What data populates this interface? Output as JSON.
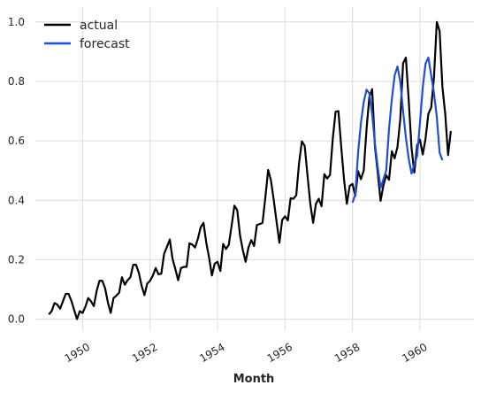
{
  "chart_data": {
    "type": "line",
    "title": "",
    "xlabel": "Month",
    "ylabel": "",
    "xlim": [
      1948.6,
      1961.6
    ],
    "ylim": [
      -0.04,
      1.05
    ],
    "grid": true,
    "legend_position": "top-left",
    "x_ticks": [
      {
        "value": 1950,
        "label": "1950"
      },
      {
        "value": 1952,
        "label": "1952"
      },
      {
        "value": 1954,
        "label": "1954"
      },
      {
        "value": 1956,
        "label": "1956"
      },
      {
        "value": 1958,
        "label": "1958"
      },
      {
        "value": 1960,
        "label": "1960"
      }
    ],
    "y_ticks": [
      {
        "value": 0.0,
        "label": "0.0"
      },
      {
        "value": 0.2,
        "label": "0.2"
      },
      {
        "value": 0.4,
        "label": "0.4"
      },
      {
        "value": 0.6,
        "label": "0.6"
      },
      {
        "value": 0.8,
        "label": "0.8"
      },
      {
        "value": 1.0,
        "label": "1.0"
      }
    ],
    "series": [
      {
        "name": "actual",
        "color": "#000000",
        "x_start": 1949.0,
        "x_step": 0.083333,
        "values": [
          0.016,
          0.027,
          0.054,
          0.049,
          0.035,
          0.06,
          0.085,
          0.085,
          0.062,
          0.031,
          0.0,
          0.027,
          0.021,
          0.042,
          0.071,
          0.06,
          0.044,
          0.095,
          0.129,
          0.129,
          0.104,
          0.056,
          0.021,
          0.071,
          0.079,
          0.089,
          0.141,
          0.116,
          0.131,
          0.141,
          0.183,
          0.183,
          0.156,
          0.112,
          0.081,
          0.12,
          0.129,
          0.147,
          0.172,
          0.151,
          0.153,
          0.22,
          0.243,
          0.268,
          0.203,
          0.168,
          0.131,
          0.172,
          0.176,
          0.176,
          0.255,
          0.251,
          0.241,
          0.27,
          0.309,
          0.324,
          0.257,
          0.207,
          0.147,
          0.187,
          0.193,
          0.162,
          0.253,
          0.236,
          0.25,
          0.314,
          0.382,
          0.367,
          0.282,
          0.232,
          0.193,
          0.241,
          0.266,
          0.246,
          0.317,
          0.32,
          0.324,
          0.409,
          0.502,
          0.467,
          0.4,
          0.328,
          0.257,
          0.334,
          0.346,
          0.332,
          0.407,
          0.405,
          0.417,
          0.525,
          0.598,
          0.583,
          0.484,
          0.388,
          0.324,
          0.388,
          0.405,
          0.38,
          0.488,
          0.473,
          0.485,
          0.608,
          0.698,
          0.7,
          0.579,
          0.469,
          0.388,
          0.448,
          0.455,
          0.415,
          0.498,
          0.471,
          0.5,
          0.639,
          0.747,
          0.774,
          0.579,
          0.492,
          0.398,
          0.45,
          0.484,
          0.469,
          0.565,
          0.541,
          0.579,
          0.672,
          0.861,
          0.88,
          0.737,
          0.577,
          0.493,
          0.585,
          0.604,
          0.554,
          0.608,
          0.691,
          0.712,
          0.815,
          1.0,
          0.969,
          0.78,
          0.69,
          0.552,
          0.633
        ]
      },
      {
        "name": "forecast",
        "color": "#1f4ed8",
        "x_start": 1958.0,
        "x_step": 0.083333,
        "values": [
          0.392,
          0.42,
          0.56,
          0.66,
          0.73,
          0.772,
          0.76,
          0.69,
          0.59,
          0.51,
          0.442,
          0.47,
          0.5,
          0.64,
          0.74,
          0.82,
          0.85,
          0.8,
          0.7,
          0.61,
          0.54,
          0.49,
          0.52,
          0.55,
          0.66,
          0.78,
          0.86,
          0.88,
          0.82,
          0.76,
          0.68,
          0.56,
          0.535
        ]
      }
    ]
  }
}
